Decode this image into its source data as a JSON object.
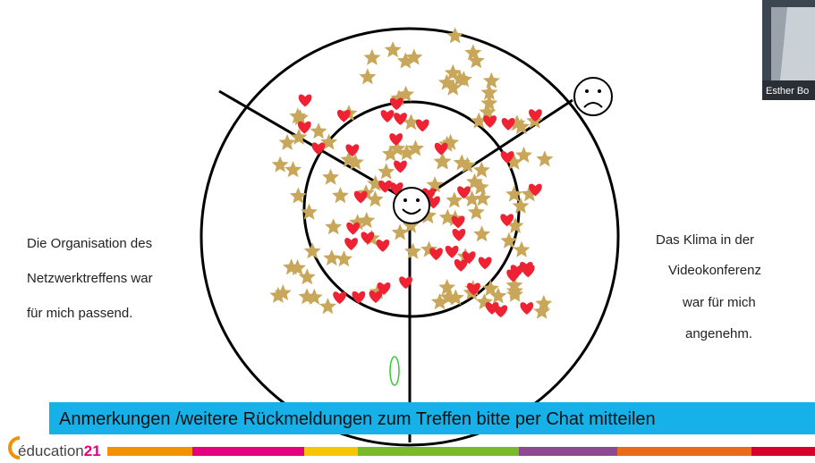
{
  "left_label": [
    "Die Organisation des",
    "Netzwerktreffens war",
    "für mich passend."
  ],
  "right_label": [
    "Das Klima in der",
    "Videokonferenz",
    "war für mich",
    "angenehm."
  ],
  "banner": "Anmerkungen /weitere Rückmeldungen zum Treffen bitte per Chat mitteilen",
  "logo": {
    "text": "éducation",
    "number": "21"
  },
  "participant": "Esther Bo"
}
